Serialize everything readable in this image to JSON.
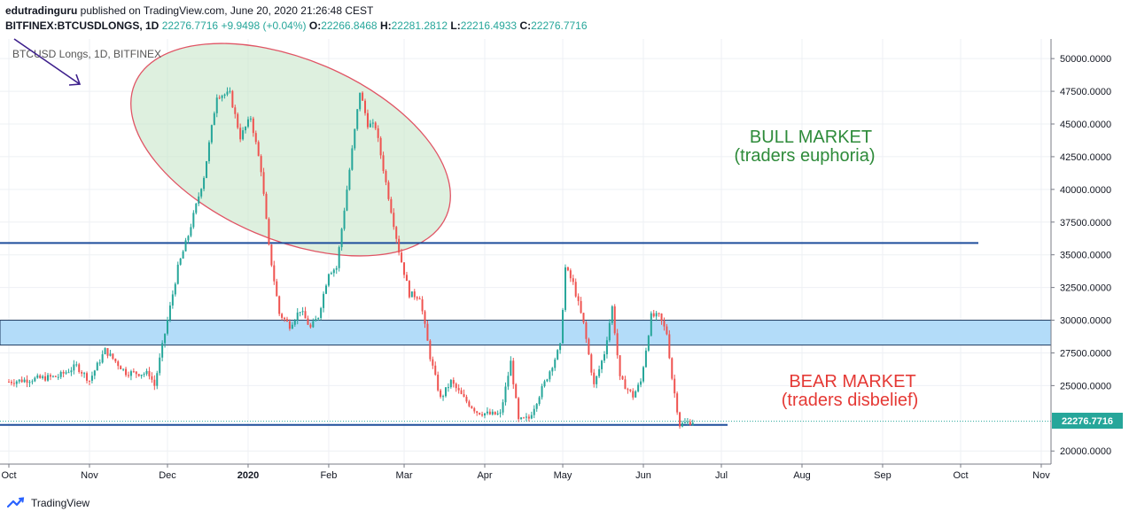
{
  "header": {
    "publisher": "edutradinguru",
    "published_text": "published on TradingView.com, June 20, 2020 21:26:48 CEST",
    "symbol_line": "BITFINEX:BTCUSDLONGS, 1D",
    "last": "22276.7716",
    "change": "+9.9498 (+0.04%)",
    "open_label": "O:",
    "open": "22266.8468",
    "high_label": "H:",
    "high": "22281.2812",
    "low_label": "L:",
    "low": "22216.4933",
    "close_label": "C:",
    "close": "22276.7716"
  },
  "footer": {
    "brand": "TradingView"
  },
  "chart_data": {
    "type": "candlestick",
    "legend": "BTCUSD Longs, 1D, BITFINEX",
    "y_range": [
      19000,
      51500
    ],
    "y_ticks": [
      "50000.0000",
      "47500.0000",
      "45000.0000",
      "42500.0000",
      "40000.0000",
      "37500.0000",
      "35000.0000",
      "32500.0000",
      "30000.0000",
      "27500.0000",
      "25000.0000",
      "20000.0000"
    ],
    "x_ticks": [
      "Oct",
      "Nov",
      "Dec",
      "2020",
      "Feb",
      "Mar",
      "Apr",
      "May",
      "Jun",
      "Jul",
      "Aug",
      "Sep",
      "Oct",
      "Nov"
    ],
    "last_price_label": "22276.7716",
    "horizontal_lines": [
      35900,
      22000
    ],
    "zone": [
      28100,
      30000
    ],
    "annotations": {
      "bull_line1": "BULL MARKET",
      "bull_line2": "(traders euphoria)",
      "bear_line1": "BEAR MARKET",
      "bear_line2": "(traders disbelief)"
    },
    "colors": {
      "up": "#26a69a",
      "down": "#ef5350",
      "line": "#1f4e9c",
      "zone": "#b3dcf9",
      "bull": "#2e8b3a",
      "bear": "#e53935"
    },
    "price_path": [
      [
        "2019-10-01",
        25300
      ],
      [
        "2019-10-20",
        25700
      ],
      [
        "2019-10-27",
        26500
      ],
      [
        "2019-11-01",
        25400
      ],
      [
        "2019-11-07",
        27700
      ],
      [
        "2019-11-15",
        26000
      ],
      [
        "2019-11-24",
        25900
      ],
      [
        "2019-11-26",
        25000
      ],
      [
        "2019-12-01",
        30000
      ],
      [
        "2019-12-05",
        34000
      ],
      [
        "2019-12-09",
        36500
      ],
      [
        "2019-12-15",
        41000
      ],
      [
        "2019-12-20",
        47200
      ],
      [
        "2019-12-25",
        47300
      ],
      [
        "2019-12-29",
        44000
      ],
      [
        "2020-01-02",
        45500
      ],
      [
        "2020-01-06",
        41500
      ],
      [
        "2020-01-09",
        35600
      ],
      [
        "2020-01-13",
        30500
      ],
      [
        "2020-01-17",
        29600
      ],
      [
        "2020-01-21",
        30800
      ],
      [
        "2020-01-25",
        29400
      ],
      [
        "2020-01-28",
        30300
      ],
      [
        "2020-02-01",
        33700
      ],
      [
        "2020-02-04",
        34000
      ],
      [
        "2020-02-07",
        38500
      ],
      [
        "2020-02-10",
        43000
      ],
      [
        "2020-02-13",
        47500
      ],
      [
        "2020-02-16",
        45000
      ],
      [
        "2020-02-19",
        44800
      ],
      [
        "2020-02-23",
        40500
      ],
      [
        "2020-02-28",
        35300
      ],
      [
        "2020-03-03",
        32000
      ],
      [
        "2020-03-07",
        31800
      ],
      [
        "2020-03-11",
        27200
      ],
      [
        "2020-03-15",
        24000
      ],
      [
        "2020-03-19",
        25300
      ],
      [
        "2020-03-24",
        24000
      ],
      [
        "2020-03-29",
        23000
      ],
      [
        "2020-04-03",
        22800
      ],
      [
        "2020-04-07",
        22800
      ],
      [
        "2020-04-11",
        26800
      ],
      [
        "2020-04-14",
        22300
      ],
      [
        "2020-04-18",
        22500
      ],
      [
        "2020-04-24",
        25200
      ],
      [
        "2020-04-30",
        28000
      ],
      [
        "2020-05-02",
        34000
      ],
      [
        "2020-05-05",
        32800
      ],
      [
        "2020-05-09",
        29700
      ],
      [
        "2020-05-13",
        25000
      ],
      [
        "2020-05-17",
        27500
      ],
      [
        "2020-05-20",
        31000
      ],
      [
        "2020-05-23",
        25500
      ],
      [
        "2020-05-28",
        24200
      ],
      [
        "2020-05-31",
        25300
      ],
      [
        "2020-06-04",
        30300
      ],
      [
        "2020-06-07",
        30300
      ],
      [
        "2020-06-10",
        29000
      ],
      [
        "2020-06-12",
        25600
      ],
      [
        "2020-06-15",
        22000
      ],
      [
        "2020-06-20",
        22277
      ]
    ]
  }
}
